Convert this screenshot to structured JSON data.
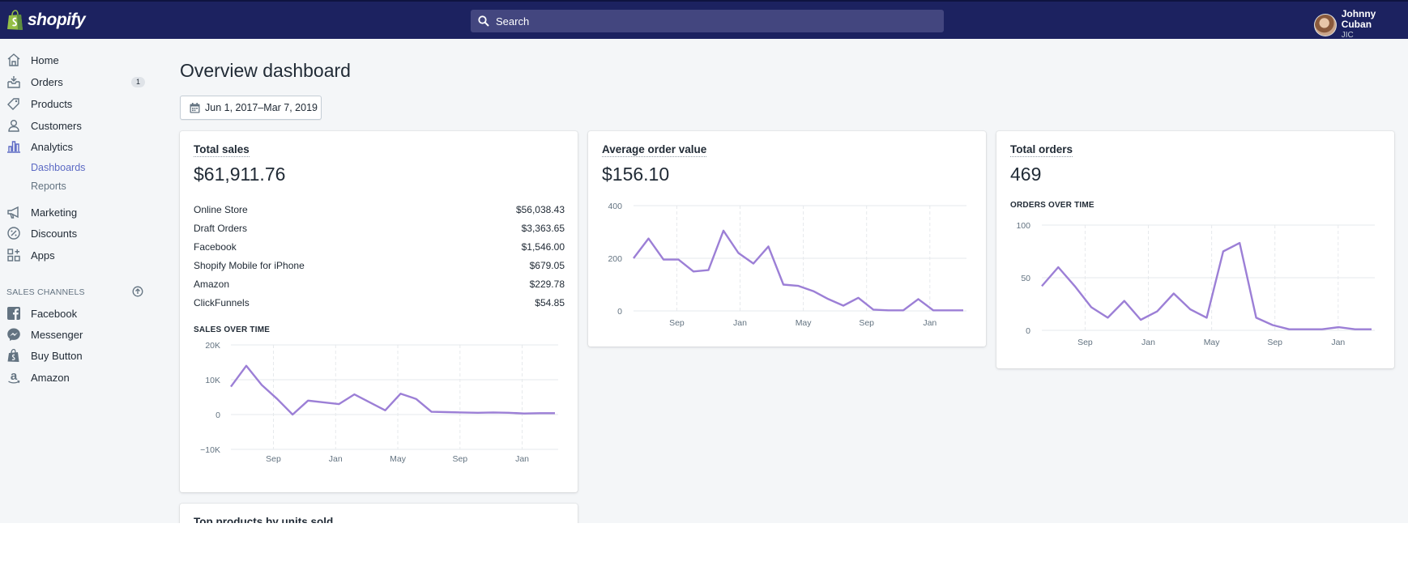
{
  "brand": {
    "name": "shopify"
  },
  "search": {
    "placeholder": "Search"
  },
  "user": {
    "name": "Johnny Cuban",
    "store": "JIC"
  },
  "sidebar": {
    "items": [
      {
        "label": "Home",
        "icon": "home-icon"
      },
      {
        "label": "Orders",
        "icon": "orders-icon",
        "badge": "1"
      },
      {
        "label": "Products",
        "icon": "tag-icon"
      },
      {
        "label": "Customers",
        "icon": "person-icon"
      },
      {
        "label": "Analytics",
        "icon": "bar-chart-icon"
      },
      {
        "label": "Marketing",
        "icon": "megaphone-icon"
      },
      {
        "label": "Discounts",
        "icon": "discount-icon"
      },
      {
        "label": "Apps",
        "icon": "apps-icon"
      }
    ],
    "analytics_sub": [
      "Dashboards",
      "Reports"
    ],
    "sales_channels_title": "SALES CHANNELS",
    "channels": [
      {
        "label": "Facebook",
        "icon": "facebook-icon"
      },
      {
        "label": "Messenger",
        "icon": "messenger-icon"
      },
      {
        "label": "Buy Button",
        "icon": "buy-button-icon"
      },
      {
        "label": "Amazon",
        "icon": "amazon-icon"
      }
    ]
  },
  "page": {
    "title": "Overview dashboard",
    "date_range": "Jun 1, 2017–Mar 7, 2019"
  },
  "cards": {
    "total_sales": {
      "title": "Total sales",
      "value": "$61,911.76",
      "breakdown": [
        {
          "name": "Online Store",
          "value": "$56,038.43"
        },
        {
          "name": "Draft Orders",
          "value": "$3,363.65"
        },
        {
          "name": "Facebook",
          "value": "$1,546.00"
        },
        {
          "name": "Shopify Mobile for iPhone",
          "value": "$679.05"
        },
        {
          "name": "Amazon",
          "value": "$229.78"
        },
        {
          "name": "ClickFunnels",
          "value": "$54.85"
        }
      ],
      "chart_title": "SALES OVER TIME"
    },
    "avg_order": {
      "title": "Average order value",
      "value": "$156.10"
    },
    "total_orders": {
      "title": "Total orders",
      "value": "469",
      "chart_title": "ORDERS OVER TIME"
    },
    "top_products": {
      "title": "Top products by units sold"
    }
  },
  "colors": {
    "line": "#9c7fd6",
    "topbar": "#1c2260",
    "nav_active": "#5c6ac4"
  },
  "chart_data": [
    {
      "type": "line",
      "chart_title": "SALES OVER TIME",
      "x_ticks": [
        "Sep",
        "Jan",
        "May",
        "Sep",
        "Jan"
      ],
      "y_ticks": [
        "20K",
        "10K",
        "0",
        "−10K"
      ],
      "ylim": [
        -10000,
        20000
      ],
      "grid": true,
      "series": [
        {
          "values": [
            8000,
            14000,
            8500,
            4500,
            0,
            4000,
            3500,
            3000,
            5800,
            3500,
            1200,
            6000,
            4500,
            800,
            700,
            600,
            500,
            600,
            500,
            300,
            400,
            400
          ]
        }
      ]
    },
    {
      "type": "line",
      "x_ticks": [
        "Sep",
        "Jan",
        "May",
        "Sep",
        "Jan"
      ],
      "y_ticks": [
        "400",
        "200",
        "0"
      ],
      "ylim": [
        0,
        400
      ],
      "grid": true,
      "series": [
        {
          "values": [
            200,
            275,
            195,
            195,
            150,
            155,
            305,
            220,
            180,
            245,
            100,
            95,
            75,
            45,
            20,
            50,
            5,
            2,
            2,
            45,
            2,
            2,
            2
          ]
        }
      ]
    },
    {
      "type": "line",
      "chart_title": "ORDERS OVER TIME",
      "x_ticks": [
        "Sep",
        "Jan",
        "May",
        "Sep",
        "Jan"
      ],
      "y_ticks": [
        "100",
        "50",
        "0"
      ],
      "ylim": [
        0,
        100
      ],
      "grid": true,
      "series": [
        {
          "values": [
            42,
            60,
            42,
            22,
            12,
            28,
            10,
            18,
            35,
            20,
            12,
            75,
            83,
            12,
            5,
            1,
            1,
            1,
            3,
            1,
            1
          ]
        }
      ]
    }
  ]
}
